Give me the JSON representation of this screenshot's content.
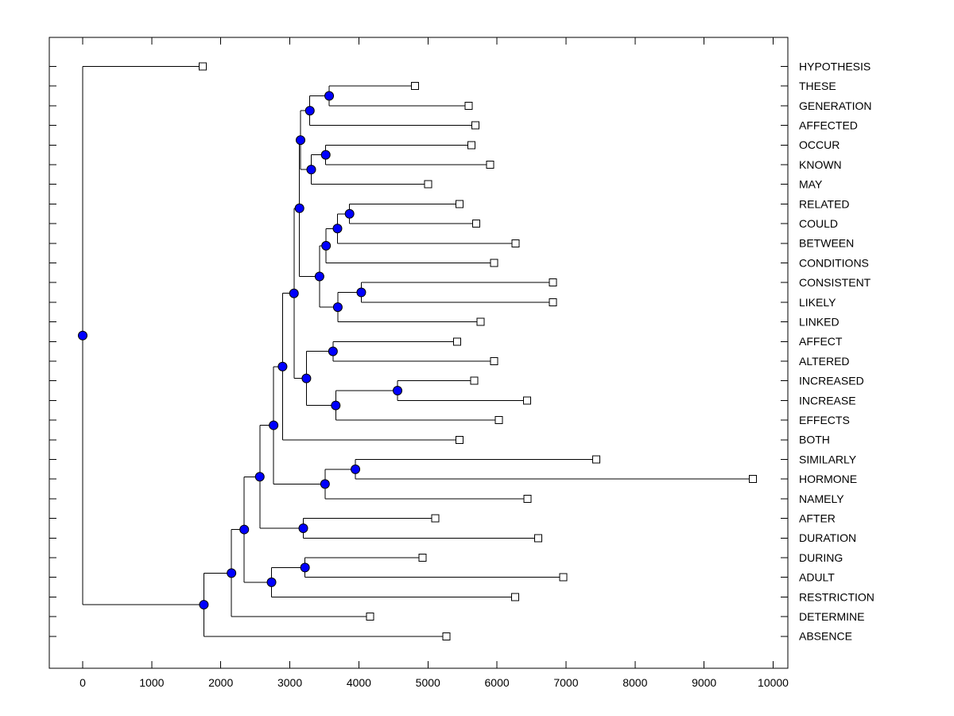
{
  "figure": {
    "background": "#ffffff"
  },
  "chart_data": {
    "type": "dendrogram",
    "subtype": "phylogenetic-tree-horizontal",
    "title": "",
    "xlabel": "",
    "ylabel": "",
    "grid": false,
    "legend": null,
    "x_axis": {
      "min": 0,
      "max": 10200,
      "tick_values": [
        0,
        1000,
        2000,
        3000,
        4000,
        5000,
        6000,
        7000,
        8000,
        9000,
        10000
      ],
      "tick_labels": [
        "0",
        "1000",
        "2000",
        "3000",
        "4000",
        "5000",
        "6000",
        "7000",
        "8000",
        "9000",
        "10000"
      ]
    },
    "leaves": [
      {
        "label": "HYPOTHESIS",
        "distance": 1740
      },
      {
        "label": "THESE",
        "distance": 4815
      },
      {
        "label": "GENERATION",
        "distance": 5590
      },
      {
        "label": "AFFECTED",
        "distance": 5690
      },
      {
        "label": "OCCUR",
        "distance": 5630
      },
      {
        "label": "KNOWN",
        "distance": 5900
      },
      {
        "label": "MAY",
        "distance": 5000
      },
      {
        "label": "RELATED",
        "distance": 5460
      },
      {
        "label": "COULD",
        "distance": 5700
      },
      {
        "label": "BETWEEN",
        "distance": 6270
      },
      {
        "label": "CONDITIONS",
        "distance": 5960
      },
      {
        "label": "CONSISTENT",
        "distance": 6810
      },
      {
        "label": "LIKELY",
        "distance": 6810
      },
      {
        "label": "LINKED",
        "distance": 5760
      },
      {
        "label": "AFFECT",
        "distance": 5425
      },
      {
        "label": "ALTERED",
        "distance": 5960
      },
      {
        "label": "INCREASED",
        "distance": 5670
      },
      {
        "label": "INCREASE",
        "distance": 6435
      },
      {
        "label": "EFFECTS",
        "distance": 6025
      },
      {
        "label": "BOTH",
        "distance": 5455
      },
      {
        "label": "SIMILARLY",
        "distance": 7440
      },
      {
        "label": "HORMONE",
        "distance": 9705
      },
      {
        "label": "NAMELY",
        "distance": 6440
      },
      {
        "label": "AFTER",
        "distance": 5105
      },
      {
        "label": "DURATION",
        "distance": 6595
      },
      {
        "label": "DURING",
        "distance": 4925
      },
      {
        "label": "ADULT",
        "distance": 6960
      },
      {
        "label": "RESTRICTION",
        "distance": 6265
      },
      {
        "label": "DETERMINE",
        "distance": 4165
      },
      {
        "label": "ABSENCE",
        "distance": 5265
      }
    ],
    "nodes": [
      {
        "id": "nA",
        "children": [
          "THESE",
          "GENERATION"
        ],
        "distance": 3570
      },
      {
        "id": "nB",
        "children": [
          "nA",
          "AFFECTED"
        ],
        "distance": 3290
      },
      {
        "id": "nD",
        "children": [
          "OCCUR",
          "KNOWN"
        ],
        "distance": 3520
      },
      {
        "id": "nE",
        "children": [
          "nD",
          "MAY"
        ],
        "distance": 3310
      },
      {
        "id": "nC",
        "children": [
          "nB",
          "nE"
        ],
        "distance": 3155
      },
      {
        "id": "nG",
        "children": [
          "RELATED",
          "COULD"
        ],
        "distance": 3865
      },
      {
        "id": "nH",
        "children": [
          "nG",
          "BETWEEN"
        ],
        "distance": 3690
      },
      {
        "id": "nI",
        "children": [
          "nH",
          "CONDITIONS"
        ],
        "distance": 3525
      },
      {
        "id": "nK",
        "children": [
          "CONSISTENT",
          "LIKELY"
        ],
        "distance": 4035
      },
      {
        "id": "nL",
        "children": [
          "nK",
          "LINKED"
        ],
        "distance": 3695
      },
      {
        "id": "nJ",
        "children": [
          "nI",
          "nL"
        ],
        "distance": 3430
      },
      {
        "id": "nF",
        "children": [
          "nC",
          "nJ"
        ],
        "distance": 3140
      },
      {
        "id": "nO",
        "children": [
          "AFFECT",
          "ALTERED"
        ],
        "distance": 3625
      },
      {
        "id": "nS",
        "children": [
          "INCREASED",
          "INCREASE"
        ],
        "distance": 4560
      },
      {
        "id": "nR",
        "children": [
          "nS",
          "EFFECTS"
        ],
        "distance": 3665
      },
      {
        "id": "nQ",
        "children": [
          "nO",
          "nR"
        ],
        "distance": 3240
      },
      {
        "id": "nM",
        "children": [
          "nF",
          "nQ"
        ],
        "distance": 3060
      },
      {
        "id": "nP",
        "children": [
          "nM",
          "BOTH"
        ],
        "distance": 2895
      },
      {
        "id": "nV",
        "children": [
          "SIMILARLY",
          "HORMONE"
        ],
        "distance": 3950
      },
      {
        "id": "nW",
        "children": [
          "nV",
          "NAMELY"
        ],
        "distance": 3510
      },
      {
        "id": "nT",
        "children": [
          "nP",
          "nW"
        ],
        "distance": 2765
      },
      {
        "id": "nAA",
        "children": [
          "AFTER",
          "DURATION"
        ],
        "distance": 3195
      },
      {
        "id": "nU",
        "children": [
          "nT",
          "nAA"
        ],
        "distance": 2565
      },
      {
        "id": "nAC",
        "children": [
          "DURING",
          "ADULT"
        ],
        "distance": 3220
      },
      {
        "id": "nAB",
        "children": [
          "nAC",
          "RESTRICTION"
        ],
        "distance": 2735
      },
      {
        "id": "nZ",
        "children": [
          "nU",
          "nAB"
        ],
        "distance": 2340
      },
      {
        "id": "nAD",
        "children": [
          "nZ",
          "DETERMINE"
        ],
        "distance": 2155
      },
      {
        "id": "nAE",
        "children": [
          "nAD",
          "ABSENCE"
        ],
        "distance": 1755
      },
      {
        "id": "root",
        "children": [
          "HYPOTHESIS",
          "nAE"
        ],
        "distance": 0
      }
    ],
    "colors": {
      "branch": "#000000",
      "node_marker_fill": "#0000ff",
      "node_marker_edge": "#000000",
      "leaf_marker_fill": "#ffffff",
      "leaf_marker_edge": "#000000",
      "text": "#000000",
      "axis": "#000000",
      "background": "#ffffff"
    }
  }
}
